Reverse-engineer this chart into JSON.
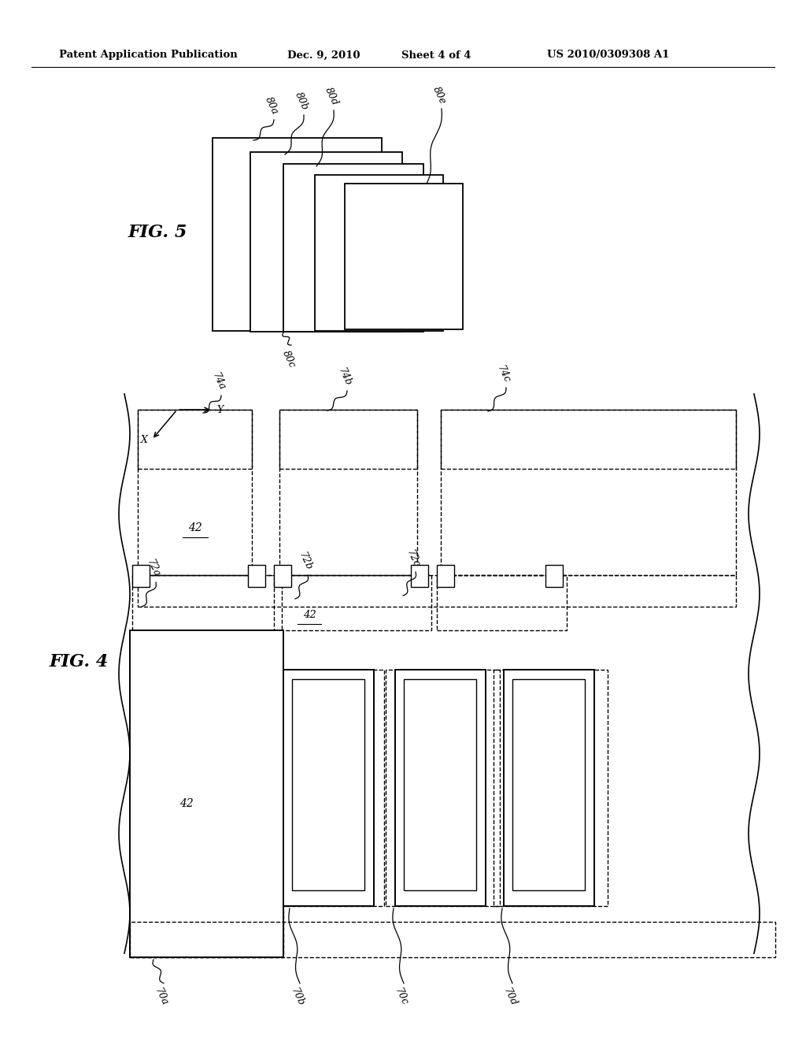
{
  "bg_color": "#ffffff",
  "header_text": "Patent Application Publication",
  "header_date": "Dec. 9, 2010",
  "header_sheet": "Sheet 4 of 4",
  "header_patent": "US 2010/0309308 A1",
  "fig5_label": "FIG. 5",
  "fig4_label": "FIG. 4",
  "line_color": "#333333",
  "text_color": "#000000"
}
